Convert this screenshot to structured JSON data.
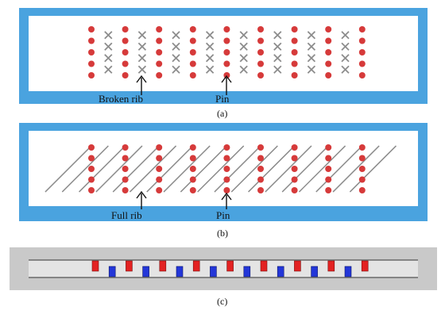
{
  "panels": [
    {
      "caption": "(a)",
      "labels": {
        "rib": "Broken rib",
        "pin": "Pin"
      },
      "columns": 17,
      "pin_rows": 5,
      "rib": "broken"
    },
    {
      "caption": "(b)",
      "labels": {
        "rib": "Full rib",
        "pin": "Pin"
      },
      "columns": 17,
      "pin_rows": 5,
      "rib": "full"
    },
    {
      "caption": "(c)",
      "red_pins": 9,
      "blue_pins": 8
    }
  ],
  "colors": {
    "frame": "#4aa3df",
    "pin": "#d63a3a",
    "rib": "#8c8c8c",
    "red_block": "#e32222",
    "blue_block": "#2336d8",
    "channel": "#c8c8c8"
  }
}
